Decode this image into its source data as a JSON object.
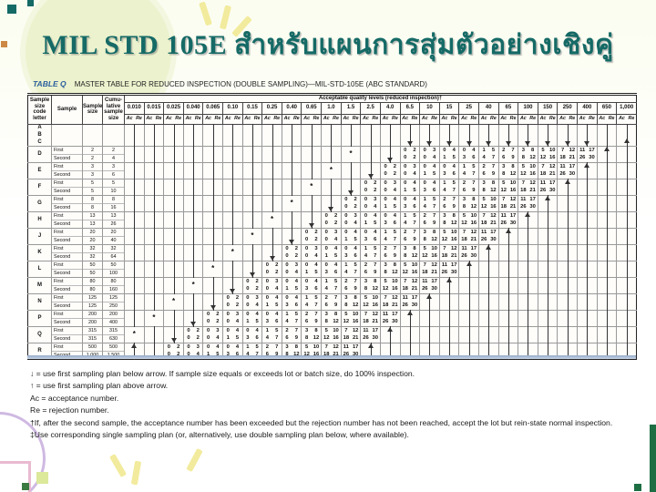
{
  "slide": {
    "title": "MIL STD 105E สำหรับแผนการสุ่มตัวอย่างเชิงคู่"
  },
  "colors": {
    "title_teal": "#156a66",
    "caption_blue": "#2b5f9e",
    "table_border": "#333333",
    "bottom_band_blue": "#94abc9",
    "decor_pale_green": "#ecf2cd",
    "decor_lavender": "#cfb9e2",
    "decor_pink": "#e9bad1",
    "decor_green_bar": "#1d6e43",
    "decor_yellow": "#f2eb9d"
  },
  "table": {
    "caption_label": "TABLE Q",
    "caption_text": "MASTER TABLE FOR REDUCED INSPECTION (DOUBLE SAMPLING)—MIL-STD-105E (ABC STANDARD)",
    "headers": {
      "code_letter": "Sample size code letter",
      "sample": "Sample",
      "sample_size": "Sample size",
      "cumulative": "Cumu-lative sample size",
      "aql_band": "Acceptable quality levels (reduced inspection)†",
      "ac": "Ac",
      "re": "Re"
    },
    "aql_columns": [
      "0.010",
      "0.015",
      "0.025",
      "0.040",
      "0.065",
      "0.10",
      "0.15",
      "0.25",
      "0.40",
      "0.65",
      "1.0",
      "1.5",
      "2.5",
      "4.0",
      "6.5",
      "10",
      "15",
      "25",
      "40",
      "65",
      "100",
      "150",
      "250",
      "400",
      "650",
      "1,000"
    ],
    "pairs": [
      {
        "first": "0 2",
        "second": "0 2"
      },
      {
        "first": "0 3",
        "second": "0 4"
      },
      {
        "first": "0 4",
        "second": "1 5"
      },
      {
        "first": "0 4",
        "second": "3 6"
      },
      {
        "first": "1 5",
        "second": "4 7"
      },
      {
        "first": "2 7",
        "second": "6 9"
      },
      {
        "first": "3 8",
        "second": "8 12"
      },
      {
        "first": "5 10",
        "second": "12 16"
      },
      {
        "first": "7 12",
        "second": "18 21"
      },
      {
        "first": "11 17",
        "second": "26 30"
      }
    ],
    "sample_labels": [
      "First",
      "Second"
    ],
    "rows": [
      {
        "letter": "A",
        "type": "single",
        "cells": [
          "ln",
          "ln",
          "ln",
          "ln",
          "ln",
          "ln",
          "ln",
          "ln",
          "ln",
          "ln",
          "ln",
          "ln",
          "ln",
          "ln",
          "ln",
          "ln",
          "ln",
          "ln",
          "ln",
          "ln",
          "ln",
          "ln",
          "ln",
          "ln",
          "ln",
          "ln"
        ]
      },
      {
        "letter": "B",
        "type": "single",
        "cells": [
          "ln",
          "ln",
          "ln",
          "ln",
          "ln",
          "ln",
          "ln",
          "ln",
          "ln",
          "ln",
          "ln",
          "ln",
          "ln",
          "ln",
          "ln",
          "ln",
          "ln",
          "ln",
          "ln",
          "ln",
          "ln",
          "ln",
          "ln",
          "ln",
          "ln",
          "ln"
        ]
      },
      {
        "letter": "C",
        "type": "single",
        "cells": [
          "ln",
          "ln",
          "ln",
          "ln",
          "ln",
          "ln",
          "ln",
          "ln",
          "ln",
          "ln",
          "ln",
          "ln",
          "ln",
          "ln",
          "dn",
          "dn",
          "dn",
          "dn",
          "dn",
          "dn",
          "dn",
          "dn",
          "dn",
          "dn",
          "ln",
          "up"
        ]
      },
      {
        "letter": "D",
        "type": "double",
        "first": [
          "2",
          "2"
        ],
        "second": [
          "2",
          "4"
        ],
        "cells": [
          "ln",
          "ln",
          "ln",
          "ln",
          "ln",
          "ln",
          "ln",
          "ln",
          "ln",
          "ln",
          "ln",
          "ast",
          "ln",
          "dn",
          "p1",
          "p2",
          "p3",
          "p4",
          "p5",
          "p6",
          "p7",
          "p8",
          "p9",
          "p10",
          "up",
          "ln"
        ]
      },
      {
        "letter": "E",
        "type": "double",
        "first": [
          "3",
          "3"
        ],
        "second": [
          "3",
          "6"
        ],
        "cells": [
          "ln",
          "ln",
          "ln",
          "ln",
          "ln",
          "ln",
          "ln",
          "ln",
          "ln",
          "ln",
          "ast",
          "ln",
          "dn",
          "p1",
          "p2",
          "p3",
          "p4",
          "p5",
          "p6",
          "p7",
          "p8",
          "p9",
          "p10",
          "up",
          "ln",
          "ln"
        ]
      },
      {
        "letter": "F",
        "type": "double",
        "first": [
          "5",
          "5"
        ],
        "second": [
          "5",
          "10"
        ],
        "cells": [
          "ln",
          "ln",
          "ln",
          "ln",
          "ln",
          "ln",
          "ln",
          "ln",
          "ln",
          "ast",
          "ln",
          "dn",
          "p1",
          "p2",
          "p3",
          "p4",
          "p5",
          "p6",
          "p7",
          "p8",
          "p9",
          "p10",
          "up",
          "ln",
          "ln",
          "ln"
        ]
      },
      {
        "letter": "G",
        "type": "double",
        "first": [
          "8",
          "8"
        ],
        "second": [
          "8",
          "16"
        ],
        "cells": [
          "ln",
          "ln",
          "ln",
          "ln",
          "ln",
          "ln",
          "ln",
          "ln",
          "ast",
          "ln",
          "dn",
          "p1",
          "p2",
          "p3",
          "p4",
          "p5",
          "p6",
          "p7",
          "p8",
          "p9",
          "p10",
          "up",
          "ln",
          "ln",
          "ln",
          "ln"
        ]
      },
      {
        "letter": "H",
        "type": "double",
        "first": [
          "13",
          "13"
        ],
        "second": [
          "13",
          "26"
        ],
        "cells": [
          "ln",
          "ln",
          "ln",
          "ln",
          "ln",
          "ln",
          "ln",
          "ast",
          "ln",
          "dn",
          "p1",
          "p2",
          "p3",
          "p4",
          "p5",
          "p6",
          "p7",
          "p8",
          "p9",
          "p10",
          "up",
          "ln",
          "ln",
          "ln",
          "ln",
          "ln"
        ]
      },
      {
        "letter": "J",
        "type": "double",
        "first": [
          "20",
          "20"
        ],
        "second": [
          "20",
          "40"
        ],
        "cells": [
          "ln",
          "ln",
          "ln",
          "ln",
          "ln",
          "ln",
          "ast",
          "ln",
          "dn",
          "p1",
          "p2",
          "p3",
          "p4",
          "p5",
          "p6",
          "p7",
          "p8",
          "p9",
          "p10",
          "up",
          "ln",
          "ln",
          "ln",
          "ln",
          "ln",
          "ln"
        ]
      },
      {
        "letter": "K",
        "type": "double",
        "first": [
          "32",
          "32"
        ],
        "second": [
          "32",
          "64"
        ],
        "cells": [
          "ln",
          "ln",
          "ln",
          "ln",
          "ln",
          "ast",
          "ln",
          "dn",
          "p1",
          "p2",
          "p3",
          "p4",
          "p5",
          "p6",
          "p7",
          "p8",
          "p9",
          "p10",
          "up",
          "ln",
          "ln",
          "ln",
          "ln",
          "ln",
          "ln",
          "ln"
        ]
      },
      {
        "letter": "L",
        "type": "double",
        "first": [
          "50",
          "50"
        ],
        "second": [
          "50",
          "100"
        ],
        "cells": [
          "ln",
          "ln",
          "ln",
          "ln",
          "ast",
          "ln",
          "dn",
          "p1",
          "p2",
          "p3",
          "p4",
          "p5",
          "p6",
          "p7",
          "p8",
          "p9",
          "p10",
          "up",
          "ln",
          "ln",
          "ln",
          "ln",
          "ln",
          "ln",
          "ln",
          "ln"
        ]
      },
      {
        "letter": "M",
        "type": "double",
        "first": [
          "80",
          "80"
        ],
        "second": [
          "80",
          "160"
        ],
        "cells": [
          "ln",
          "ln",
          "ln",
          "ast",
          "ln",
          "dn",
          "p1",
          "p2",
          "p3",
          "p4",
          "p5",
          "p6",
          "p7",
          "p8",
          "p9",
          "p10",
          "up",
          "ln",
          "ln",
          "ln",
          "ln",
          "ln",
          "ln",
          "ln",
          "ln",
          "ln"
        ]
      },
      {
        "letter": "N",
        "type": "double",
        "first": [
          "125",
          "125"
        ],
        "second": [
          "125",
          "250"
        ],
        "cells": [
          "ln",
          "ln",
          "ast",
          "ln",
          "dn",
          "p1",
          "p2",
          "p3",
          "p4",
          "p5",
          "p6",
          "p7",
          "p8",
          "p9",
          "p10",
          "up",
          "ln",
          "ln",
          "ln",
          "ln",
          "ln",
          "ln",
          "ln",
          "ln",
          "ln",
          "ln"
        ]
      },
      {
        "letter": "P",
        "type": "double",
        "first": [
          "200",
          "200"
        ],
        "second": [
          "200",
          "400"
        ],
        "cells": [
          "ln",
          "ast",
          "ln",
          "dn",
          "p1",
          "p2",
          "p3",
          "p4",
          "p5",
          "p6",
          "p7",
          "p8",
          "p9",
          "p10",
          "up",
          "ln",
          "ln",
          "ln",
          "ln",
          "ln",
          "ln",
          "ln",
          "ln",
          "ln",
          "ln",
          "ln"
        ]
      },
      {
        "letter": "Q",
        "type": "double",
        "first": [
          "315",
          "315"
        ],
        "second": [
          "315",
          "630"
        ],
        "cells": [
          "ast",
          "ln",
          "dn",
          "p1",
          "p2",
          "p3",
          "p4",
          "p5",
          "p6",
          "p7",
          "p8",
          "p9",
          "p10",
          "up",
          "ln",
          "ln",
          "ln",
          "ln",
          "ln",
          "ln",
          "ln",
          "ln",
          "ln",
          "ln",
          "ln",
          "ln"
        ]
      },
      {
        "letter": "R",
        "type": "double",
        "first": [
          "500",
          "500"
        ],
        "second": [
          "1,000",
          "1,500"
        ],
        "cells": [
          "up",
          "ln",
          "p1",
          "p2",
          "p3",
          "p4",
          "p5",
          "p6",
          "p7",
          "p8",
          "p9",
          "p10",
          "up",
          "ln",
          "ln",
          "ln",
          "ln",
          "ln",
          "ln",
          "ln",
          "ln",
          "ln",
          "ln",
          "ln",
          "ln",
          "ln"
        ]
      }
    ]
  },
  "footnotes": [
    "↓ = use first sampling plan below arrow. If sample size equals or exceeds lot or batch size, do 100% inspection.",
    "↑ = use first sampling plan above arrow.",
    "Ac = acceptance number.",
    "Re = rejection number.",
    "†If, after the second sample, the acceptance number has been exceeded but the rejection number has not been reached, accept the lot but rein-state normal inspection.",
    "‡Use corresponding single sampling plan (or, alternatively, use double sampling plan below, where available)."
  ]
}
